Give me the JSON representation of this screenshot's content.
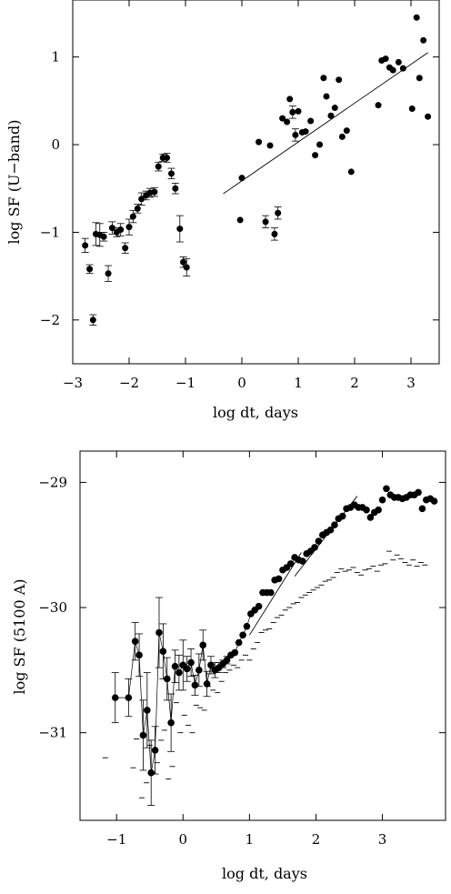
{
  "chart_data": [
    {
      "type": "scatter",
      "title": "",
      "xlabel": "log dt, days",
      "ylabel": "log SF (U−band)",
      "xlim": [
        -3,
        3.5
      ],
      "ylim": [
        -2.5,
        1.65
      ],
      "xticks": [
        -3,
        -2,
        -1,
        0,
        1,
        2,
        3
      ],
      "xtick_labels": [
        "−3",
        "−2",
        "−1",
        "0",
        "1",
        "2",
        "3"
      ],
      "yticks": [
        -2,
        -1,
        0,
        1
      ],
      "ytick_labels": [
        "−2",
        "−1",
        "0",
        "1"
      ],
      "grid": false,
      "points_with_errors": {
        "x": [
          -2.78,
          -2.7,
          -2.64,
          -2.59,
          -2.52,
          -2.45,
          -2.37,
          -2.3,
          -2.22,
          -2.15,
          -2.07,
          -2.0,
          -1.93,
          -1.85,
          -1.78,
          -1.7,
          -1.63,
          -1.55,
          -1.48,
          -1.4,
          -1.33,
          -1.25,
          -1.18,
          -1.1,
          -1.04,
          -0.98
        ],
        "y": [
          -1.15,
          -1.42,
          -2.0,
          -1.02,
          -1.03,
          -1.05,
          -1.47,
          -0.95,
          -1.0,
          -0.97,
          -1.18,
          -0.94,
          -0.82,
          -0.73,
          -0.62,
          -0.58,
          -0.55,
          -0.54,
          -0.25,
          -0.15,
          -0.15,
          -0.33,
          -0.5,
          -0.96,
          -1.34,
          -1.4
        ],
        "err": [
          0.08,
          0.05,
          0.06,
          0.13,
          0.13,
          0.05,
          0.09,
          0.07,
          0.05,
          0.07,
          0.06,
          0.09,
          0.07,
          0.05,
          0.07,
          0.05,
          0.05,
          0.05,
          0.05,
          0.04,
          0.05,
          0.06,
          0.06,
          0.15,
          0.06,
          0.1
        ]
      },
      "points": {
        "x": [
          -0.03,
          0.0,
          0.3,
          0.42,
          0.5,
          0.58,
          0.64,
          0.72,
          0.8,
          0.85,
          0.9,
          0.95,
          1.0,
          1.07,
          1.13,
          1.22,
          1.3,
          1.38,
          1.45,
          1.5,
          1.58,
          1.65,
          1.72,
          1.78,
          1.86,
          1.94,
          2.42,
          2.48,
          2.55,
          2.62,
          2.68,
          2.78,
          2.86,
          3.02,
          3.1,
          3.15,
          3.22,
          3.3
        ],
        "y": [
          -0.86,
          -0.38,
          0.03,
          -0.88,
          -0.01,
          -1.02,
          -0.78,
          0.3,
          0.26,
          0.52,
          0.37,
          0.11,
          0.38,
          0.14,
          0.15,
          0.27,
          -0.12,
          0.0,
          0.76,
          0.55,
          0.33,
          0.42,
          0.74,
          0.09,
          0.16,
          -0.31,
          0.45,
          0.96,
          0.98,
          0.88,
          0.85,
          0.94,
          0.87,
          0.41,
          1.45,
          0.76,
          1.19,
          0.32
        ]
      },
      "error_bar_points": [
        0.42,
        0.58,
        0.64,
        0.9,
        0.95
      ],
      "fit_line": {
        "x": [
          -0.33,
          3.3
        ],
        "y": [
          -0.56,
          1.05
        ]
      }
    },
    {
      "type": "scatter",
      "title": "",
      "xlabel": "log dt, days",
      "ylabel": "log SF (5100 A)",
      "xlim": [
        -1.55,
        3.95
      ],
      "ylim": [
        -31.7,
        -28.75
      ],
      "xticks": [
        -1,
        0,
        1,
        2,
        3
      ],
      "xtick_labels": [
        "−1",
        "0",
        "1",
        "2",
        "3"
      ],
      "yticks": [
        -31,
        -30,
        -29
      ],
      "ytick_labels": [
        "−31",
        "−30",
        "−29"
      ],
      "grid": false,
      "connected_points": {
        "x": [
          -1.02,
          -0.82,
          -0.72,
          -0.66,
          -0.6,
          -0.54,
          -0.48,
          -0.42,
          -0.36,
          -0.3,
          -0.24,
          -0.18,
          -0.12,
          -0.06,
          0.0,
          0.06,
          0.12,
          0.18,
          0.24,
          0.3,
          0.36,
          0.42,
          0.48,
          0.54,
          0.6,
          0.66,
          0.72,
          0.78,
          0.84,
          0.9,
          0.96,
          1.02,
          1.08
        ],
        "y": [
          -30.72,
          -30.72,
          -30.27,
          -30.38,
          -31.02,
          -30.82,
          -31.32,
          -31.14,
          -30.2,
          -30.35,
          -30.57,
          -30.92,
          -30.47,
          -30.52,
          -30.46,
          -30.49,
          -30.44,
          -30.62,
          -30.5,
          -30.3,
          -30.61,
          -30.46,
          -30.5,
          -30.48,
          -30.45,
          -30.42,
          -30.38,
          -30.36,
          -30.28,
          -30.22,
          -30.15,
          -30.05,
          -30.02
        ],
        "err": [
          0.2,
          0.15,
          0.15,
          0.17,
          0.28,
          0.3,
          0.26,
          0.19,
          0.28,
          0.22,
          0.17,
          0.23,
          0.13,
          0.14,
          0.2,
          0.1,
          0.11,
          0.08,
          0.13,
          0.12,
          0.1,
          0.07,
          0.06,
          0.04,
          0.03,
          0.03,
          0.02,
          0.02,
          0.02,
          0.02,
          0.02,
          0.02,
          0.02
        ]
      },
      "points": {
        "x": [
          1.14,
          1.2,
          1.26,
          1.32,
          1.38,
          1.44,
          1.5,
          1.56,
          1.62,
          1.68,
          1.74,
          1.8,
          1.86,
          1.92,
          1.98,
          2.04,
          2.1,
          2.16,
          2.22,
          2.28,
          2.34,
          2.4,
          2.46,
          2.52,
          2.58,
          2.64,
          2.7,
          2.76,
          2.82,
          2.88,
          2.94,
          3.0,
          3.06,
          3.12,
          3.18,
          3.24,
          3.3,
          3.36,
          3.42,
          3.48,
          3.54,
          3.6,
          3.66,
          3.72,
          3.78
        ],
        "y": [
          -29.99,
          -29.88,
          -29.88,
          -29.88,
          -29.78,
          -29.77,
          -29.7,
          -29.68,
          -29.65,
          -29.6,
          -29.62,
          -29.63,
          -29.57,
          -29.55,
          -29.52,
          -29.47,
          -29.42,
          -29.4,
          -29.38,
          -29.34,
          -29.29,
          -29.27,
          -29.21,
          -29.2,
          -29.18,
          -29.2,
          -29.2,
          -29.22,
          -29.28,
          -29.24,
          -29.22,
          -29.14,
          -29.05,
          -29.1,
          -29.12,
          -29.12,
          -29.13,
          -29.12,
          -29.1,
          -29.1,
          -29.08,
          -29.21,
          -29.14,
          -29.13,
          -29.15
        ]
      },
      "fit_lines": [
        {
          "x": [
            1.0,
            1.78
          ],
          "y": [
            -30.22,
            -29.56
          ]
        },
        {
          "x": [
            1.68,
            2.62
          ],
          "y": [
            -29.75,
            -29.11
          ]
        }
      ],
      "dash_markers": {
        "x": [
          -1.17,
          -0.75,
          -0.7,
          -0.62,
          -0.55,
          -0.5,
          -0.45,
          -0.39,
          -0.33,
          -0.28,
          -0.22,
          -0.16,
          -0.1,
          -0.04,
          0.02,
          0.08,
          0.14,
          0.2,
          0.26,
          0.32,
          0.38,
          0.45,
          0.52,
          0.58,
          0.64,
          0.7,
          0.76,
          0.82,
          0.88,
          0.94,
          1.0,
          1.06,
          1.12,
          1.18,
          1.24,
          1.3,
          1.36,
          1.42,
          1.48,
          1.54,
          1.6,
          1.66,
          1.72,
          1.78,
          1.84,
          1.9,
          1.96,
          2.02,
          2.08,
          2.14,
          2.2,
          2.26,
          2.32,
          2.38,
          2.44,
          2.5,
          2.56,
          2.62,
          2.68,
          2.74,
          2.8,
          2.86,
          2.92,
          2.98,
          3.04,
          3.1,
          3.16,
          3.22,
          3.28,
          3.34,
          3.4,
          3.46,
          3.52,
          3.58,
          3.64
        ],
        "y": [
          -31.2,
          -31.28,
          -31.05,
          -31.52,
          -31.4,
          -31.1,
          -31.32,
          -31.24,
          -31.06,
          -30.98,
          -31.37,
          -31.27,
          -30.76,
          -31.0,
          -30.86,
          -30.94,
          -31.0,
          -30.78,
          -30.8,
          -30.82,
          -30.63,
          -30.66,
          -30.68,
          -30.59,
          -30.52,
          -30.5,
          -30.46,
          -30.48,
          -30.42,
          -30.38,
          -30.42,
          -30.33,
          -30.28,
          -30.2,
          -30.18,
          -30.17,
          -30.12,
          -30.08,
          -30.06,
          -30.02,
          -30.0,
          -29.97,
          -29.96,
          -29.92,
          -29.9,
          -29.88,
          -29.86,
          -29.84,
          -29.82,
          -29.79,
          -29.78,
          -29.76,
          -29.72,
          -29.69,
          -29.71,
          -29.7,
          -29.68,
          -29.72,
          -29.74,
          -29.7,
          -29.69,
          -29.67,
          -29.71,
          -29.66,
          -29.65,
          -29.55,
          -29.62,
          -29.58,
          -29.61,
          -29.64,
          -29.66,
          -29.62,
          -29.67,
          -29.64,
          -29.66
        ]
      }
    }
  ]
}
